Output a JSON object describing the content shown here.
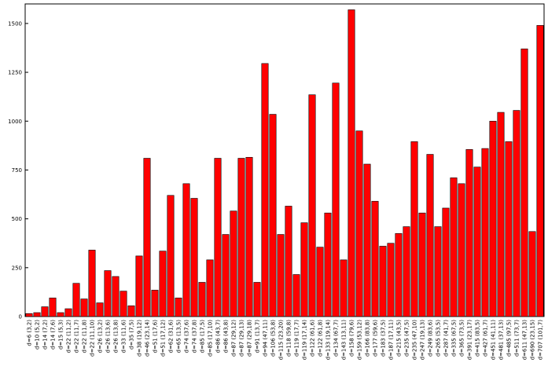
{
  "chart_data": {
    "type": "bar",
    "categories": [
      "d=6 (3,2)",
      "d=10 (5,2)",
      "d=14 (7,2)",
      "d=14 (7,6)",
      "d=15 (5,3)",
      "d=22 (11,2)",
      "d=22 (11,7)",
      "d=22 (11,8)",
      "d=22 (11,10)",
      "d=26 (13,2)",
      "d=26 (13,6)",
      "d=26 (13,8)",
      "d=33 (11,6)",
      "d=35 (7,5)",
      "d=38 (19,12)",
      "d=46 (23,14)",
      "d=51 (17,6)",
      "d=51 (17,12)",
      "d=62 (31,6)",
      "d=65 (13,5)",
      "d=74 (37,6)",
      "d=74 (37,8)",
      "d=85 (17,5)",
      "d=85 (17,10)",
      "d=86 (43,7)",
      "d=86 (43,8)",
      "d=87 (29,12)",
      "d=87 (29,13)",
      "d=87 (29,18)",
      "d=91 (13,7)",
      "d=94 (47,11)",
      "d=106 (53,8)",
      "d=115 (23,20)",
      "d=118 (59,8)",
      "d=119 (17,7)",
      "d=119 (17,14)",
      "d=122 (61,6)",
      "d=122 (61,8)",
      "d=133 (19,14)",
      "d=134 (67,7)",
      "d=143 (13,11)",
      "d=158 (79,6)",
      "d=159 (53,12)",
      "d=166 (83,8)",
      "d=177 (59,6)",
      "d=183 (37,5)",
      "d=187 (17,11)",
      "d=215 (43,5)",
      "d=235 (47,5)",
      "d=235 (47,10)",
      "d=247 (19,13)",
      "d=249 (83,6)",
      "d=265 (53,5)",
      "d=287 (41,7)",
      "d=335 (67,5)",
      "d=365 (73,5)",
      "d=391 (23,17)",
      "d=415 (83,5)",
      "d=427 (61,7)",
      "d=451 (41,11)",
      "d=481 (37,13)",
      "d=485 (97,5)",
      "d=511 (73,7)",
      "d=611 (47,13)",
      "d=690 (23,15)",
      "d=707 (101,7)"
    ],
    "values": [
      15,
      20,
      50,
      95,
      20,
      40,
      170,
      90,
      340,
      70,
      235,
      205,
      130,
      55,
      310,
      810,
      135,
      335,
      620,
      95,
      680,
      605,
      175,
      290,
      810,
      420,
      540,
      810,
      815,
      175,
      1295,
      1035,
      420,
      565,
      215,
      480,
      1135,
      355,
      530,
      1195,
      290,
      1570,
      950,
      780,
      590,
      360,
      375,
      425,
      460,
      895,
      530,
      830,
      460,
      555,
      710,
      680,
      855,
      765,
      860,
      1000,
      1045,
      895,
      1055,
      1370,
      435,
      1490
    ],
    "color": "#ff0000",
    "ylim": [
      0,
      1600
    ],
    "yticks": [
      0,
      250,
      500,
      750,
      1000,
      1250,
      1500
    ]
  }
}
